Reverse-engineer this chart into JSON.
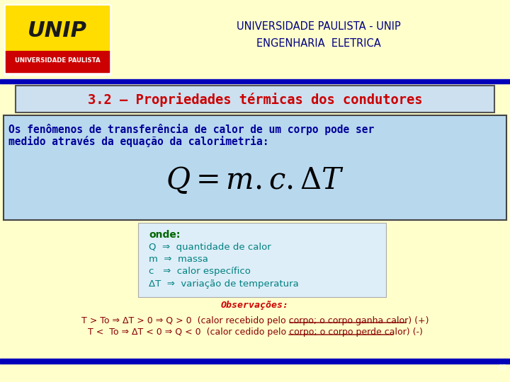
{
  "bg_color": "#ffffcc",
  "header_text_line1": "UNIVERSIDADE PAULISTA - UNIP",
  "header_text_line2": "ENGENHARIA  ELETRICA",
  "header_color": "#000080",
  "title_text": "3.2 – Propriedades térmicas dos condutores",
  "title_color": "#cc0000",
  "title_bg": "#cce0f0",
  "title_border": "#333333",
  "main_box_bg": "#b8d8ee",
  "main_box_border": "#333333",
  "intro_text_line1": "Os fenômenos de transferência de calor de um corpo pode ser",
  "intro_text_line2": "medido através da equação da calorimetria:",
  "intro_color": "#000099",
  "formula_color": "#000000",
  "onde_box_bg": "#ddeef8",
  "onde_label": "onde:",
  "onde_label_color": "#006600",
  "onde_items": [
    "Q  ⇒  quantidade de calor",
    "m  ⇒  massa",
    "c   ⇒  calor específico",
    "ΔT  ⇒  variação de temperatura"
  ],
  "onde_color": "#008080",
  "obs_title": "Observações:",
  "obs_title_color": "#cc0000",
  "obs_line1a": "T > To ⇒ ΔT > 0 ⇒ Q > 0  (calor ",
  "obs_line1b": "recebido pelo corpo",
  "obs_line1c": "; o corpo ganha calor) (+)",
  "obs_line2a": "T <  To ⇒ ΔT < 0 ⇒ Q < 0  (calor ",
  "obs_line2b": "cedido pelo corpo",
  "obs_line2c": "; o corpo perde calor) (-)",
  "obs_color": "#880000",
  "page_num": "02",
  "blue_bar_color": "#0000bb"
}
